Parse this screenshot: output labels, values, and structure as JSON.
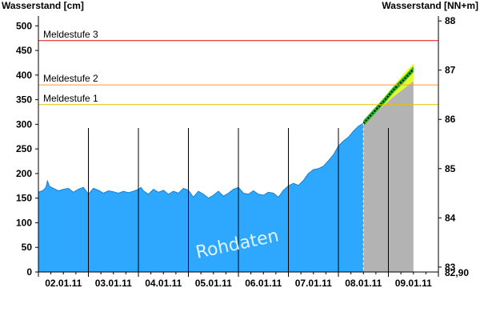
{
  "chart_data": {
    "type": "area",
    "title": "",
    "ylabel_left": "Wasserstand [cm]",
    "ylabel_right": "Wasserstand [NN+m]",
    "ylim_left": [
      0,
      520
    ],
    "ylim_right": [
      82.9,
      88.1
    ],
    "yticks_left": [
      "0",
      "50",
      "100",
      "150",
      "200",
      "250",
      "300",
      "350",
      "400",
      "450",
      "500"
    ],
    "yticks_left_values": [
      0,
      50,
      100,
      150,
      200,
      250,
      300,
      350,
      400,
      450,
      500
    ],
    "yticks_right": [
      "83",
      "84",
      "85",
      "86",
      "87",
      "88"
    ],
    "yticks_right_values": [
      83,
      84,
      85,
      86,
      87,
      88
    ],
    "right_axis_bottom_label": "82,90",
    "x_tick_labels": [
      "02.01.11",
      "03.01.11",
      "04.01.11",
      "05.01.11",
      "06.01.11",
      "07.01.11",
      "08.01.11",
      "09.01.11"
    ],
    "x_range_days": [
      1.5,
      9.5
    ],
    "day_separator_days": [
      2.5,
      3.5,
      4.5,
      5.5,
      6.5,
      7.5,
      8.5
    ],
    "forecast_start_day": 8.0,
    "thresholds": [
      {
        "label": "Meldestufe 1",
        "value": 340,
        "color": "#e6c200"
      },
      {
        "label": "Meldestufe 2",
        "value": 380,
        "color": "#ff9a2e"
      },
      {
        "label": "Meldestufe 3",
        "value": 470,
        "color": "#e01010"
      }
    ],
    "measured": {
      "name": "Rohdaten",
      "color": "#2ea8ff",
      "points": [
        [
          1.5,
          162
        ],
        [
          1.6,
          166
        ],
        [
          1.65,
          172
        ],
        [
          1.68,
          185
        ],
        [
          1.72,
          174
        ],
        [
          1.8,
          170
        ],
        [
          1.9,
          165
        ],
        [
          2.0,
          168
        ],
        [
          2.1,
          170
        ],
        [
          2.2,
          162
        ],
        [
          2.3,
          168
        ],
        [
          2.4,
          172
        ],
        [
          2.5,
          158
        ],
        [
          2.6,
          170
        ],
        [
          2.7,
          166
        ],
        [
          2.8,
          160
        ],
        [
          2.9,
          165
        ],
        [
          3.0,
          163
        ],
        [
          3.1,
          160
        ],
        [
          3.2,
          164
        ],
        [
          3.3,
          161
        ],
        [
          3.4,
          164
        ],
        [
          3.5,
          168
        ],
        [
          3.55,
          172
        ],
        [
          3.6,
          165
        ],
        [
          3.7,
          158
        ],
        [
          3.8,
          168
        ],
        [
          3.9,
          162
        ],
        [
          4.0,
          166
        ],
        [
          4.1,
          158
        ],
        [
          4.2,
          164
        ],
        [
          4.3,
          160
        ],
        [
          4.4,
          170
        ],
        [
          4.5,
          166
        ],
        [
          4.6,
          152
        ],
        [
          4.7,
          164
        ],
        [
          4.8,
          158
        ],
        [
          4.9,
          150
        ],
        [
          5.0,
          156
        ],
        [
          5.1,
          164
        ],
        [
          5.2,
          154
        ],
        [
          5.3,
          160
        ],
        [
          5.4,
          168
        ],
        [
          5.5,
          172
        ],
        [
          5.6,
          160
        ],
        [
          5.7,
          158
        ],
        [
          5.8,
          165
        ],
        [
          5.9,
          158
        ],
        [
          6.0,
          156
        ],
        [
          6.1,
          162
        ],
        [
          6.2,
          160
        ],
        [
          6.3,
          152
        ],
        [
          6.4,
          166
        ],
        [
          6.5,
          175
        ],
        [
          6.6,
          180
        ],
        [
          6.7,
          176
        ],
        [
          6.8,
          186
        ],
        [
          6.9,
          200
        ],
        [
          7.0,
          208
        ],
        [
          7.1,
          210
        ],
        [
          7.2,
          215
        ],
        [
          7.3,
          226
        ],
        [
          7.4,
          238
        ],
        [
          7.5,
          256
        ],
        [
          7.6,
          266
        ],
        [
          7.7,
          274
        ],
        [
          7.8,
          286
        ],
        [
          7.9,
          296
        ],
        [
          8.0,
          302
        ]
      ]
    },
    "forecast_center": {
      "color": "#000000",
      "points": [
        [
          8.0,
          302
        ],
        [
          8.2,
          324
        ],
        [
          8.4,
          346
        ],
        [
          8.6,
          370
        ],
        [
          8.8,
          390
        ],
        [
          9.0,
          412
        ]
      ]
    },
    "forecast_band_colors": {
      "outer": "#e6ff2e",
      "inner": "#21b521"
    },
    "forecast_bound_color": "#b3b3b3",
    "forecast_lower": [
      [
        8.0,
        300
      ],
      [
        8.2,
        320
      ],
      [
        8.4,
        338
      ],
      [
        8.6,
        356
      ],
      [
        8.8,
        372
      ],
      [
        9.0,
        388
      ]
    ],
    "forecast_upper": [
      [
        8.0,
        304
      ],
      [
        8.2,
        330
      ],
      [
        8.4,
        354
      ],
      [
        8.6,
        378
      ],
      [
        8.8,
        402
      ],
      [
        9.0,
        424
      ]
    ],
    "forecast_end_day": 9.0,
    "watermark": "Rohdaten",
    "grid": false
  }
}
